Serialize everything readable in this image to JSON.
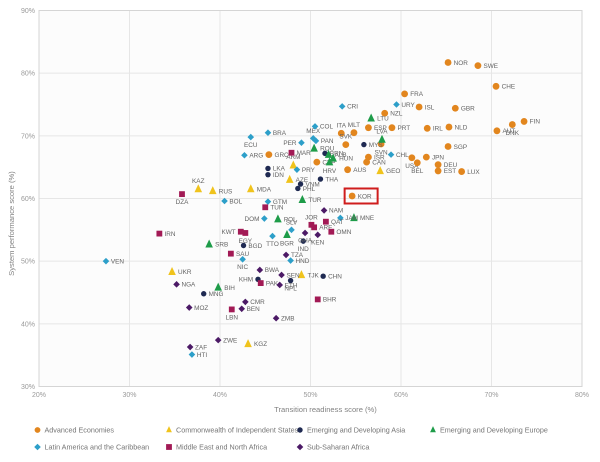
{
  "chart_data": {
    "type": "scatter",
    "title": "",
    "xlabel": "Transition readiness score (%)",
    "ylabel": "System performance score (%)",
    "xlim": [
      20,
      80
    ],
    "ylim": [
      30,
      90
    ],
    "xticks": [
      20,
      30,
      40,
      50,
      60,
      70,
      80
    ],
    "yticks": [
      30,
      40,
      50,
      60,
      70,
      80,
      90
    ],
    "tick_suffix": "%",
    "grid": true,
    "highlight": {
      "country": "KOR",
      "box_color": "#cf1d1d"
    },
    "colors": {
      "grid": "#e6e6e6",
      "border": "#d5d5d5",
      "tick_text": "#9a9a9a",
      "axis_title": "#828282",
      "point_label": "#636363",
      "legend_text": "#757575"
    },
    "groups": [
      {
        "name": "Advanced Economies",
        "color": "#e2861e",
        "marker": "circle",
        "size": 3.4,
        "points": [
          {
            "c": "NOR",
            "x": 65.2,
            "y": 81.7
          },
          {
            "c": "SWE",
            "x": 68.5,
            "y": 81.2
          },
          {
            "c": "CHE",
            "x": 70.5,
            "y": 77.9
          },
          {
            "c": "FRA",
            "x": 60.4,
            "y": 76.7
          },
          {
            "c": "ISL",
            "x": 62.0,
            "y": 74.6
          },
          {
            "c": "GBR",
            "x": 66.0,
            "y": 74.4
          },
          {
            "c": "NZL",
            "x": 58.2,
            "y": 73.6
          },
          {
            "c": "FIN",
            "x": 73.6,
            "y": 72.3
          },
          {
            "c": "DNK",
            "x": 72.3,
            "y": 71.8,
            "ls": "b"
          },
          {
            "c": "AUT",
            "x": 70.6,
            "y": 70.8
          },
          {
            "c": "NLD",
            "x": 65.3,
            "y": 71.4
          },
          {
            "c": "IRL",
            "x": 62.9,
            "y": 71.2
          },
          {
            "c": "PRT",
            "x": 59.0,
            "y": 71.3
          },
          {
            "c": "ESP",
            "x": 56.4,
            "y": 71.3
          },
          {
            "c": "MLT",
            "x": 54.8,
            "y": 70.5,
            "ls": "a"
          },
          {
            "c": "ITA",
            "x": 53.4,
            "y": 70.4,
            "ls": "a"
          },
          {
            "c": "GRC",
            "x": 45.4,
            "y": 67.0
          },
          {
            "c": "SVK",
            "x": 53.9,
            "y": 68.6,
            "ls": "a"
          },
          {
            "c": "SVN",
            "x": 57.8,
            "y": 68.7,
            "ls": "b"
          },
          {
            "c": "SGP",
            "x": 65.2,
            "y": 68.3
          },
          {
            "c": "ISR",
            "x": 56.4,
            "y": 66.6
          },
          {
            "c": "CAN",
            "x": 56.2,
            "y": 65.8
          },
          {
            "c": "USA",
            "x": 61.2,
            "y": 66.5,
            "ls": "b"
          },
          {
            "c": "JPN",
            "x": 62.8,
            "y": 66.6
          },
          {
            "c": "BEL",
            "x": 61.8,
            "y": 65.7,
            "ls": "b"
          },
          {
            "c": "DEU",
            "x": 64.1,
            "y": 65.4
          },
          {
            "c": "EST",
            "x": 64.1,
            "y": 64.4
          },
          {
            "c": "LUX",
            "x": 66.7,
            "y": 64.3
          },
          {
            "c": "CYP",
            "x": 50.7,
            "y": 65.8
          },
          {
            "c": "AUS",
            "x": 54.1,
            "y": 64.6
          },
          {
            "c": "KOR",
            "x": 54.6,
            "y": 60.4
          }
        ]
      },
      {
        "name": "Commonwealth of Independent States",
        "color": "#f0c31c",
        "marker": "triangle",
        "size": 3.8,
        "points": [
          {
            "c": "KAZ",
            "x": 37.6,
            "y": 61.5,
            "ls": "a"
          },
          {
            "c": "RUS",
            "x": 39.2,
            "y": 61.2
          },
          {
            "c": "MDA",
            "x": 43.4,
            "y": 61.5
          },
          {
            "c": "UKR",
            "x": 34.7,
            "y": 48.3
          },
          {
            "c": "AZE",
            "x": 47.7,
            "y": 63.0
          },
          {
            "c": "ARM",
            "x": 48.1,
            "y": 65.3,
            "ls": "a"
          },
          {
            "c": "GEO",
            "x": 57.7,
            "y": 64.4
          },
          {
            "c": "TJK",
            "x": 49.0,
            "y": 47.8
          },
          {
            "c": "KGZ",
            "x": 43.1,
            "y": 36.8
          }
        ]
      },
      {
        "name": "Emerging and Developing Asia",
        "color": "#1f2a52",
        "marker": "circle",
        "size": 2.7,
        "points": [
          {
            "c": "LKA",
            "x": 45.3,
            "y": 64.8
          },
          {
            "c": "IDN",
            "x": 45.3,
            "y": 63.8
          },
          {
            "c": "MYS",
            "x": 55.9,
            "y": 68.6
          },
          {
            "c": "BRN",
            "x": 51.6,
            "y": 67.2
          },
          {
            "c": "THA",
            "x": 51.1,
            "y": 63.1
          },
          {
            "c": "VNM",
            "x": 48.9,
            "y": 62.3
          },
          {
            "c": "PHL",
            "x": 48.6,
            "y": 61.6
          },
          {
            "c": "CHN",
            "x": 51.4,
            "y": 47.6
          },
          {
            "c": "IND",
            "x": 49.2,
            "y": 53.2,
            "ls": "b"
          },
          {
            "c": "BGD",
            "x": 42.6,
            "y": 52.5
          },
          {
            "c": "MNG",
            "x": 38.2,
            "y": 44.8
          },
          {
            "c": "KHM",
            "x": 44.2,
            "y": 47.1,
            "ls": "l"
          },
          {
            "c": "NPL",
            "x": 47.8,
            "y": 46.9,
            "ls": "b"
          }
        ]
      },
      {
        "name": "Emerging and Developing Europe",
        "color": "#1e9c49",
        "marker": "triangle",
        "size": 3.8,
        "points": [
          {
            "c": "LTU",
            "x": 56.7,
            "y": 72.8
          },
          {
            "c": "LVA",
            "x": 57.9,
            "y": 69.4,
            "ls": "a"
          },
          {
            "c": "ROU",
            "x": 50.4,
            "y": 68.0
          },
          {
            "c": "ALB",
            "x": 52.0,
            "y": 67.0
          },
          {
            "c": "HUN",
            "x": 52.5,
            "y": 66.4
          },
          {
            "c": "HRV",
            "x": 52.1,
            "y": 65.8,
            "ls": "b"
          },
          {
            "c": "SRB",
            "x": 38.8,
            "y": 52.7
          },
          {
            "c": "BIH",
            "x": 39.8,
            "y": 45.8
          },
          {
            "c": "BGR",
            "x": 47.4,
            "y": 54.2,
            "ls": "b"
          },
          {
            "c": "MNE",
            "x": 54.8,
            "y": 56.9
          },
          {
            "c": "TUR",
            "x": 49.1,
            "y": 59.8
          },
          {
            "c": "POL",
            "x": 46.4,
            "y": 56.7
          }
        ]
      },
      {
        "name": "Latin America and the Caribbean",
        "color": "#2d9fc9",
        "marker": "diamond",
        "size": 2.7,
        "points": [
          {
            "c": "BRA",
            "x": 45.3,
            "y": 70.5
          },
          {
            "c": "ECU",
            "x": 43.4,
            "y": 69.8,
            "ls": "b"
          },
          {
            "c": "ARG",
            "x": 42.7,
            "y": 66.9
          },
          {
            "c": "MEX",
            "x": 50.3,
            "y": 69.6,
            "ls": "a"
          },
          {
            "c": "COL",
            "x": 50.5,
            "y": 71.5
          },
          {
            "c": "PAN",
            "x": 50.6,
            "y": 69.2
          },
          {
            "c": "CRI",
            "x": 53.5,
            "y": 74.7
          },
          {
            "c": "URY",
            "x": 59.5,
            "y": 75.0
          },
          {
            "c": "CHL",
            "x": 58.9,
            "y": 67.0
          },
          {
            "c": "PER",
            "x": 49.0,
            "y": 68.9,
            "ls": "l"
          },
          {
            "c": "BOL",
            "x": 40.5,
            "y": 59.6
          },
          {
            "c": "GTM",
            "x": 45.3,
            "y": 59.5
          },
          {
            "c": "DOM",
            "x": 44.9,
            "y": 56.8,
            "ls": "l"
          },
          {
            "c": "SLV",
            "x": 47.9,
            "y": 55.0,
            "ls": "a"
          },
          {
            "c": "TTO",
            "x": 45.8,
            "y": 54.0,
            "ls": "b"
          },
          {
            "c": "HND",
            "x": 47.8,
            "y": 50.1
          },
          {
            "c": "NIC",
            "x": 42.5,
            "y": 50.3,
            "ls": "b"
          },
          {
            "c": "PRY",
            "x": 48.5,
            "y": 64.6
          },
          {
            "c": "VEN",
            "x": 27.4,
            "y": 50.0
          },
          {
            "c": "HTI",
            "x": 36.9,
            "y": 35.1
          },
          {
            "c": "JAM",
            "x": 53.3,
            "y": 56.9
          }
        ]
      },
      {
        "name": "Middle East and North Africa",
        "color": "#a21a55",
        "marker": "square",
        "size": 2.9,
        "points": [
          {
            "c": "DZA",
            "x": 35.8,
            "y": 60.7,
            "ls": "b"
          },
          {
            "c": "MAR",
            "x": 47.9,
            "y": 67.3
          },
          {
            "c": "TUN",
            "x": 45.0,
            "y": 58.6
          },
          {
            "c": "EGY",
            "x": 42.8,
            "y": 54.5,
            "ls": "b"
          },
          {
            "c": "KWT",
            "x": 42.3,
            "y": 54.7,
            "ls": "l"
          },
          {
            "c": "IRN",
            "x": 33.3,
            "y": 54.4
          },
          {
            "c": "SAU",
            "x": 41.2,
            "y": 51.2
          },
          {
            "c": "JOR",
            "x": 50.1,
            "y": 55.8,
            "ls": "a"
          },
          {
            "c": "ARE",
            "x": 50.4,
            "y": 55.4
          },
          {
            "c": "QAT",
            "x": 51.7,
            "y": 56.3
          },
          {
            "c": "OMN",
            "x": 52.3,
            "y": 54.7
          },
          {
            "c": "BHR",
            "x": 50.8,
            "y": 43.9
          },
          {
            "c": "LBN",
            "x": 41.3,
            "y": 42.3,
            "ls": "b"
          },
          {
            "c": "PAK",
            "x": 44.5,
            "y": 46.5
          }
        ]
      },
      {
        "name": "Sub-Saharan Africa",
        "color": "#4c1a66",
        "marker": "diamond",
        "size": 2.7,
        "points": [
          {
            "c": "ZAF",
            "x": 36.7,
            "y": 36.3
          },
          {
            "c": "NGA",
            "x": 35.2,
            "y": 46.3
          },
          {
            "c": "MOZ",
            "x": 36.6,
            "y": 42.6
          },
          {
            "c": "ZWE",
            "x": 39.8,
            "y": 37.4
          },
          {
            "c": "ZMB",
            "x": 46.2,
            "y": 40.9
          },
          {
            "c": "CMR",
            "x": 42.8,
            "y": 43.5
          },
          {
            "c": "BEN",
            "x": 42.4,
            "y": 42.4
          },
          {
            "c": "ETH",
            "x": 46.6,
            "y": 46.2
          },
          {
            "c": "KEN",
            "x": 50.8,
            "y": 54.2,
            "ls": "b"
          },
          {
            "c": "GHA",
            "x": 49.4,
            "y": 54.5,
            "ls": "b"
          },
          {
            "c": "SEN",
            "x": 46.8,
            "y": 47.8
          },
          {
            "c": "BWA",
            "x": 44.4,
            "y": 48.6
          },
          {
            "c": "NAM",
            "x": 51.5,
            "y": 58.1
          },
          {
            "c": "TZA",
            "x": 47.3,
            "y": 51.0
          }
        ]
      }
    ],
    "legend": {
      "rows": [
        [
          "Advanced Economies",
          "Commonwealth of Independent States",
          "Emerging and Developing Asia",
          "Emerging and Developing Europe"
        ],
        [
          "Latin America and the Caribbean",
          "Middle East and North Africa",
          "Sub-Saharan Africa"
        ]
      ]
    }
  }
}
